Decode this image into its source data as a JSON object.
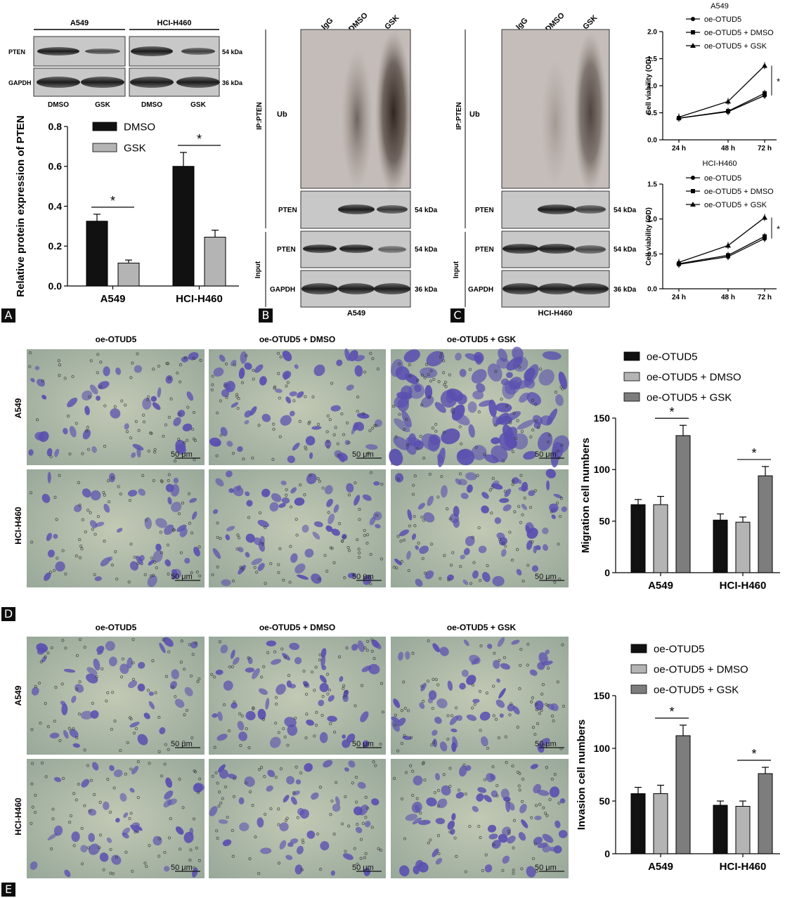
{
  "panel_letters": [
    "A",
    "B",
    "C",
    "D",
    "E"
  ],
  "blot_a": {
    "cell_lines": [
      "A549",
      "HCI-H460"
    ],
    "rows": [
      "PTEN",
      "GAPDH"
    ],
    "sizes": [
      "54 kDa",
      "36 kDa"
    ],
    "lanes": [
      "DMSO",
      "GSK",
      "DMSO",
      "GSK"
    ]
  },
  "blot_b": {
    "lanes": [
      "IgG",
      "DMSO",
      "GSK"
    ],
    "ip_label": "IP:PTEN",
    "ub_label": "Ub",
    "input_label": "Input",
    "rows": [
      "PTEN",
      "PTEN",
      "GAPDH"
    ],
    "sizes": [
      "54 kDa",
      "54 kDa",
      "36 kDa"
    ],
    "caption": "A549"
  },
  "blot_c": {
    "lanes": [
      "IgG",
      "DMSO",
      "GSK"
    ],
    "ip_label": "IP:PTEN",
    "ub_label": "Ub",
    "input_label": "Input",
    "rows": [
      "PTEN",
      "PTEN",
      "GAPDH"
    ],
    "sizes": [
      "54 kDa",
      "54 kDa",
      "36 kDa"
    ],
    "caption": "HCI-H460"
  },
  "micrographs": {
    "columns": [
      "oe-OTUD5",
      "oe-OTUD5 + DMSO",
      "oe-OTUD5 + GSK"
    ],
    "rows": [
      "A549",
      "HCI-H460"
    ],
    "scale_bar": "50 μm"
  },
  "colors": {
    "black_bar": "#111111",
    "light_gray_bar": "#b4b4b4",
    "dark_gray_bar": "#7d7d7d",
    "micrograph_bg": "#aab6a4",
    "cell": "#5a4fb0"
  },
  "chart_data": [
    {
      "type": "bar",
      "categories": [
        "A549",
        "HCI-H460"
      ],
      "series": [
        {
          "name": "DMSO",
          "values": [
            0.325,
            0.6
          ],
          "errors": [
            0.035,
            0.07
          ]
        },
        {
          "name": "GSK",
          "values": [
            0.115,
            0.245
          ],
          "errors": [
            0.015,
            0.035
          ]
        }
      ],
      "ylabel": "Relative protein expression of PTEN",
      "ylim": [
        0,
        0.8
      ],
      "yticks": [
        "0.0",
        "0.2",
        "0.4",
        "0.6",
        "0.8"
      ],
      "significance": [
        "*",
        "*"
      ],
      "legend": "top-right"
    },
    {
      "type": "line",
      "title": "A549",
      "x": [
        "24 h",
        "48 h",
        "72 h"
      ],
      "series": [
        {
          "name": "oe-OTUD5",
          "values": [
            0.4,
            0.52,
            0.82
          ]
        },
        {
          "name": "oe-OTUD5 + DMSO",
          "values": [
            0.4,
            0.53,
            0.86
          ]
        },
        {
          "name": "oe-OTUD5 + GSK",
          "values": [
            0.42,
            0.71,
            1.37
          ]
        }
      ],
      "ylabel": "Cell viability (OD)",
      "ylim": [
        0,
        2.0
      ],
      "yticks": [
        "0.0",
        "0.5",
        "1.0",
        "1.5",
        "2.0"
      ],
      "significance": [
        "*"
      ]
    },
    {
      "type": "line",
      "title": "HCI-H460",
      "x": [
        "24 h",
        "48 h",
        "72 h"
      ],
      "series": [
        {
          "name": "oe-OTUD5",
          "values": [
            0.35,
            0.46,
            0.72
          ]
        },
        {
          "name": "oe-OTUD5 + DMSO",
          "values": [
            0.36,
            0.48,
            0.75
          ]
        },
        {
          "name": "oe-OTUD5 + GSK",
          "values": [
            0.38,
            0.62,
            1.02
          ]
        }
      ],
      "ylabel": "Cell viability (OD)",
      "ylim": [
        0,
        1.5
      ],
      "yticks": [
        "0.0",
        "0.5",
        "1.0",
        "1.5"
      ],
      "significance": [
        "*"
      ]
    },
    {
      "type": "bar",
      "categories": [
        "A549",
        "HCI-H460"
      ],
      "series": [
        {
          "name": "oe-OTUD5",
          "values": [
            66,
            51
          ],
          "errors": [
            5,
            6
          ]
        },
        {
          "name": "oe-OTUD5 + DMSO",
          "values": [
            66,
            49
          ],
          "errors": [
            8,
            5
          ]
        },
        {
          "name": "oe-OTUD5 + GSK",
          "values": [
            133,
            94
          ],
          "errors": [
            10,
            9
          ]
        }
      ],
      "ylabel": "Migration cell numbers",
      "ylim": [
        0,
        150
      ],
      "yticks": [
        "0",
        "50",
        "100",
        "150"
      ],
      "significance": [
        "*",
        "*"
      ],
      "legend": "top"
    },
    {
      "type": "bar",
      "categories": [
        "A549",
        "HCI-H460"
      ],
      "series": [
        {
          "name": "oe-OTUD5",
          "values": [
            57,
            46
          ],
          "errors": [
            6,
            4
          ]
        },
        {
          "name": "oe-OTUD5 + DMSO",
          "values": [
            57,
            45
          ],
          "errors": [
            8,
            5
          ]
        },
        {
          "name": "oe-OTUD5 + GSK",
          "values": [
            112,
            76
          ],
          "errors": [
            10,
            6
          ]
        }
      ],
      "ylabel": "Invasion cell numbers",
      "ylim": [
        0,
        150
      ],
      "yticks": [
        "0",
        "50",
        "100",
        "150"
      ],
      "significance": [
        "*",
        "*"
      ],
      "legend": "top"
    }
  ]
}
